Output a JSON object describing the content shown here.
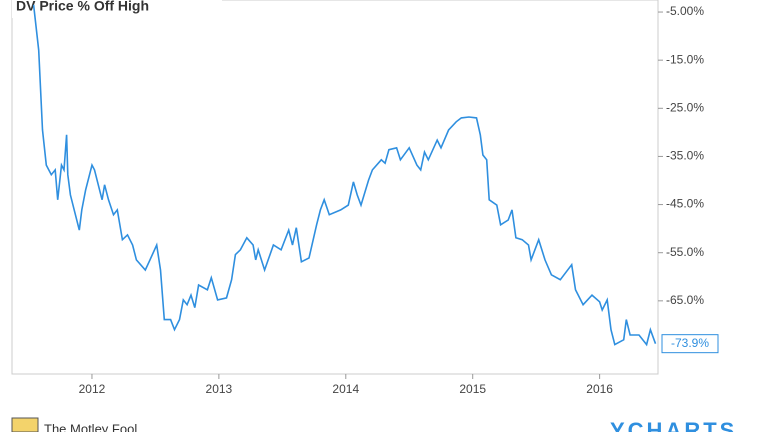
{
  "chart_data": {
    "type": "line",
    "title": "DV Price % Off High",
    "x": [
      2011.54,
      2011.58,
      2011.61,
      2011.64,
      2011.68,
      2011.71,
      2011.73,
      2011.76,
      2011.78,
      2011.8,
      2011.81,
      2011.83,
      2011.86,
      2011.9,
      2011.92,
      2011.95,
      2012.0,
      2012.02,
      2012.06,
      2012.08,
      2012.1,
      2012.13,
      2012.17,
      2012.2,
      2012.24,
      2012.28,
      2012.32,
      2012.35,
      2012.42,
      2012.45,
      2012.51,
      2012.54,
      2012.57,
      2012.62,
      2012.65,
      2012.69,
      2012.72,
      2012.75,
      2012.78,
      2012.81,
      2012.84,
      2012.91,
      2012.94,
      2012.99,
      2013.06,
      2013.1,
      2013.13,
      2013.17,
      2013.22,
      2013.27,
      2013.29,
      2013.31,
      2013.36,
      2013.43,
      2013.49,
      2013.55,
      2013.58,
      2013.61,
      2013.65,
      2013.71,
      2013.77,
      2013.8,
      2013.83,
      2013.87,
      2013.96,
      2014.02,
      2014.06,
      2014.09,
      2014.12,
      2014.18,
      2014.21,
      2014.28,
      2014.31,
      2014.34,
      2014.4,
      2014.43,
      2014.5,
      2014.56,
      2014.59,
      2014.62,
      2014.65,
      2014.72,
      2014.75,
      2014.81,
      2014.87,
      2014.91,
      2014.97,
      2015.03,
      2015.06,
      2015.08,
      2015.11,
      2015.13,
      2015.19,
      2015.22,
      2015.28,
      2015.31,
      2015.34,
      2015.39,
      2015.44,
      2015.46,
      2015.52,
      2015.57,
      2015.62,
      2015.69,
      2015.78,
      2015.81,
      2015.87,
      2015.94,
      2016.0,
      2016.02,
      2016.06,
      2016.09,
      2016.12,
      2016.19,
      2016.21,
      2016.24,
      2016.31,
      2016.37,
      2016.4,
      2016.44
    ],
    "series": [
      {
        "name": "DV Price % Off High",
        "color": "#2f8fdf",
        "values": [
          -3.5,
          -12.9,
          -29.5,
          -36.8,
          -38.8,
          -37.8,
          -44.0,
          -36.8,
          -37.8,
          -30.5,
          -38.8,
          -43.0,
          -46.1,
          -50.3,
          -46.1,
          -42.0,
          -36.8,
          -37.8,
          -42.0,
          -44.0,
          -40.9,
          -44.0,
          -47.1,
          -46.1,
          -52.3,
          -51.3,
          -53.4,
          -56.5,
          -58.6,
          -56.9,
          -53.4,
          -58.6,
          -68.9,
          -68.9,
          -71.0,
          -68.9,
          -64.8,
          -65.8,
          -63.8,
          -66.4,
          -61.7,
          -62.7,
          -60.2,
          -64.8,
          -64.4,
          -60.6,
          -55.4,
          -54.4,
          -51.9,
          -53.4,
          -56.5,
          -54.4,
          -58.6,
          -53.4,
          -54.4,
          -50.3,
          -53.4,
          -49.8,
          -56.9,
          -56.1,
          -49.2,
          -46.1,
          -44.0,
          -47.1,
          -46.1,
          -45.1,
          -40.3,
          -43.0,
          -45.1,
          -39.9,
          -37.8,
          -35.7,
          -36.4,
          -33.6,
          -33.2,
          -35.7,
          -33.2,
          -36.8,
          -37.8,
          -34.1,
          -35.7,
          -31.6,
          -33.2,
          -29.5,
          -27.8,
          -27.0,
          -26.8,
          -27.0,
          -30.5,
          -34.7,
          -35.7,
          -44.0,
          -45.1,
          -49.2,
          -48.2,
          -46.1,
          -51.9,
          -52.3,
          -53.4,
          -56.5,
          -52.3,
          -56.5,
          -59.6,
          -60.6,
          -57.5,
          -62.7,
          -65.8,
          -63.8,
          -65.2,
          -66.9,
          -64.8,
          -71.0,
          -74.1,
          -73.1,
          -68.9,
          -72.1,
          -72.1,
          -74.1,
          -71.0,
          -73.9
        ]
      }
    ],
    "last_value": -73.9,
    "last_value_label": "-73.9%",
    "xlim": [
      2011.37,
      2016.46
    ],
    "xticks": [
      2012,
      2013,
      2014,
      2015,
      2016
    ],
    "ylim": [
      -80.2,
      -2.5
    ],
    "yticks": [
      {
        "value": -5,
        "label": "-5.00%"
      },
      {
        "value": -15,
        "label": "-15.0%"
      },
      {
        "value": -25,
        "label": "-25.0%"
      },
      {
        "value": -35,
        "label": "-35.0%"
      },
      {
        "value": -45,
        "label": "-45.0%"
      },
      {
        "value": -55,
        "label": "-55.0%"
      },
      {
        "value": -65,
        "label": "-65.0%"
      }
    ],
    "y_axis_side": "right",
    "source": "The Motley Fool",
    "brand": "YCHARTS"
  }
}
